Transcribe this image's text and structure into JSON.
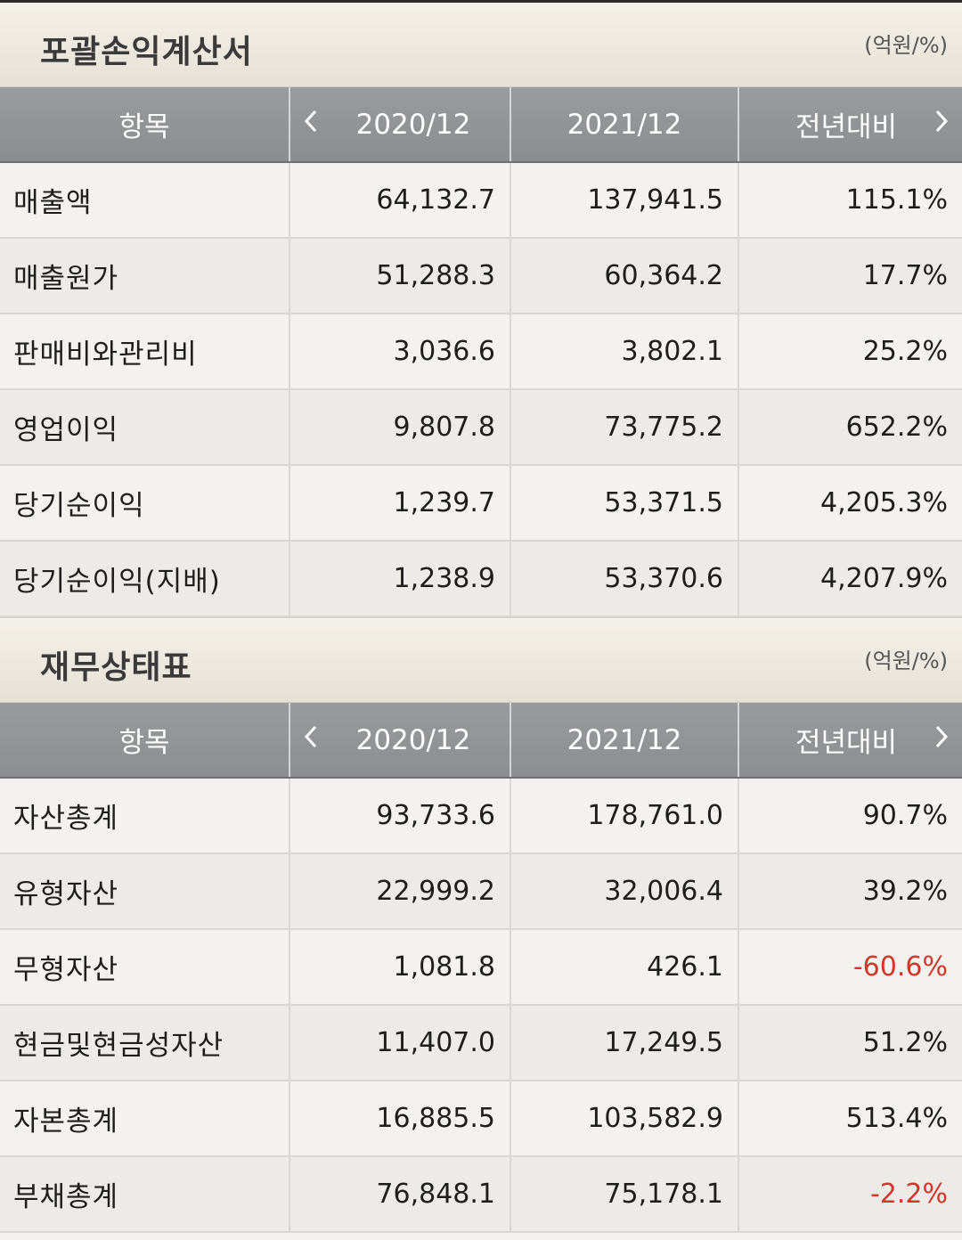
{
  "income_statement": {
    "title": "포괄손익계산서",
    "unit": "(억원/%)",
    "headers": [
      "항목",
      "2020/12",
      "2021/12",
      "전년대비"
    ],
    "rows": [
      {
        "item": "매출액",
        "y2020": "64,132.7",
        "y2021": "137,941.5",
        "yoy": "115.1%"
      },
      {
        "item": "매출원가",
        "y2020": "51,288.3",
        "y2021": "60,364.2",
        "yoy": "17.7%"
      },
      {
        "item": "판매비와관리비",
        "y2020": "3,036.6",
        "y2021": "3,802.1",
        "yoy": "25.2%"
      },
      {
        "item": "영업이익",
        "y2020": "9,807.8",
        "y2021": "73,775.2",
        "yoy": "652.2%"
      },
      {
        "item": "당기순이익",
        "y2020": "1,239.7",
        "y2021": "53,371.5",
        "yoy": "4,205.3%"
      },
      {
        "item": "당기순이익(지배)",
        "y2020": "1,238.9",
        "y2021": "53,370.6",
        "yoy": "4,207.9%"
      }
    ]
  },
  "balance_sheet": {
    "title": "재무상태표",
    "unit": "(억원/%)",
    "headers": [
      "항목",
      "2020/12",
      "2021/12",
      "전년대비"
    ],
    "rows": [
      {
        "item": "자산총계",
        "y2020": "93,733.6",
        "y2021": "178,761.0",
        "yoy": "90.7%"
      },
      {
        "item": "유형자산",
        "y2020": "22,999.2",
        "y2021": "32,006.4",
        "yoy": "39.2%"
      },
      {
        "item": "무형자산",
        "y2020": "1,081.8",
        "y2021": "426.1",
        "yoy": "-60.6%"
      },
      {
        "item": "현금및현금성자산",
        "y2020": "11,407.0",
        "y2021": "17,249.5",
        "yoy": "51.2%"
      },
      {
        "item": "자본총계",
        "y2020": "16,885.5",
        "y2021": "103,582.9",
        "yoy": "513.4%"
      },
      {
        "item": "부채총계",
        "y2020": "76,848.1",
        "y2021": "75,178.1",
        "yoy": "-2.2%"
      }
    ]
  },
  "icons": {
    "prev": "chevron-left-icon",
    "next": "chevron-right-icon"
  },
  "colors": {
    "header_bg": "#8f9094",
    "negative": "#d2372a",
    "section_bg": "#ebe7de"
  }
}
